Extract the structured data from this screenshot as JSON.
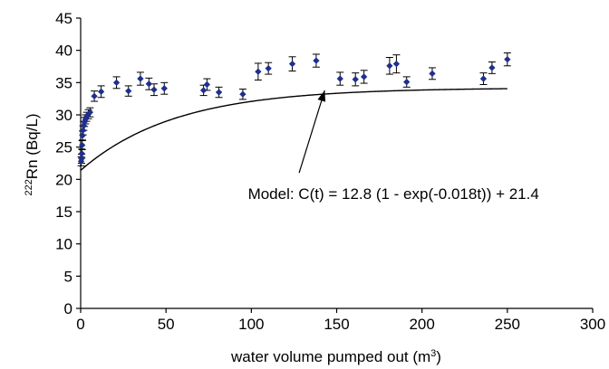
{
  "chart_data": {
    "type": "scatter",
    "title": "",
    "xlabel": {
      "main": "water volume pumped out (m",
      "sup": "3",
      "tail": ")"
    },
    "ylabel": {
      "sup": "222",
      "main": "Rn (Bq/L)"
    },
    "xlim": [
      0,
      300
    ],
    "ylim": [
      0,
      45
    ],
    "x_ticks": [
      0,
      50,
      100,
      150,
      200,
      250,
      300
    ],
    "y_ticks": [
      0,
      5,
      10,
      15,
      20,
      25,
      30,
      35,
      40,
      45
    ],
    "grid": false,
    "legend": "none",
    "colors": {
      "marker": "#1f2f8f",
      "line": "#000000",
      "errorbar": "#000000"
    },
    "series": [
      {
        "x": [
          0.3,
          0.5,
          0.7,
          0.9,
          1.1,
          1.4,
          1.8,
          2.2,
          2.8,
          3.5,
          4.5,
          5.5,
          8,
          12,
          21,
          28,
          35,
          40,
          43,
          49,
          72,
          74,
          81,
          95,
          104,
          110,
          124,
          138,
          152,
          161,
          166,
          181,
          185,
          191,
          206,
          236,
          241,
          250
        ],
        "y": [
          22.8,
          23.2,
          24.0,
          25.3,
          26.8,
          27.6,
          28.3,
          28.9,
          29.3,
          29.7,
          30.1,
          30.4,
          32.9,
          33.6,
          35.0,
          33.7,
          35.6,
          34.8,
          33.9,
          34.1,
          33.8,
          34.7,
          33.5,
          33.2,
          36.7,
          37.2,
          37.9,
          38.4,
          35.6,
          35.5,
          35.9,
          37.6,
          37.9,
          35.1,
          36.4,
          35.6,
          37.3,
          38.6
        ],
        "err": [
          0.7,
          0.7,
          0.7,
          0.7,
          0.7,
          0.7,
          0.7,
          0.7,
          0.7,
          0.7,
          0.7,
          0.7,
          0.8,
          0.9,
          0.9,
          0.8,
          1.0,
          0.9,
          0.9,
          0.9,
          0.8,
          0.9,
          0.8,
          0.8,
          1.3,
          0.9,
          1.1,
          1.0,
          1.0,
          1.0,
          1.0,
          1.3,
          1.4,
          0.8,
          0.9,
          0.9,
          0.9,
          1.0
        ]
      }
    ],
    "model_curve": {
      "a": 12.8,
      "k": 0.018,
      "c": 21.4,
      "x_range": [
        0,
        250
      ]
    },
    "annotation": {
      "text": "Model: C(t) = 12.8 (1 - exp(-0.018t)) + 21.4",
      "x": 98,
      "y": 17.8,
      "arrow_from": [
        128,
        21.0
      ],
      "arrow_to": [
        143,
        33.8
      ]
    }
  }
}
